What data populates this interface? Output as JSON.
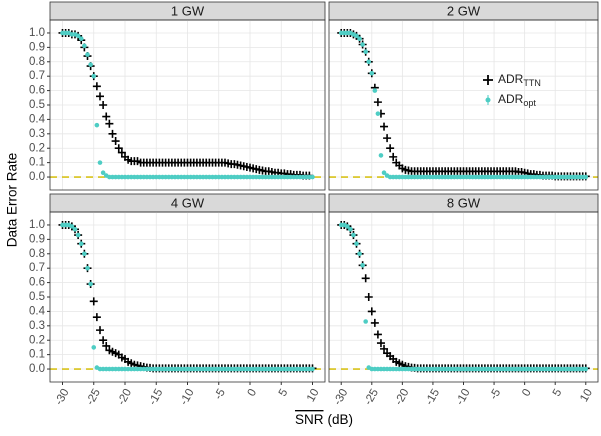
{
  "chart_data": {
    "type": "scatter",
    "ylabel": "Data Error Rate",
    "xlabel": "SNR",
    "xlabel_unit": "(dB)",
    "x": [
      -30,
      -29.5,
      -29,
      -28.5,
      -28,
      -27.5,
      -27,
      -26.5,
      -26,
      -25.5,
      -25,
      -24.5,
      -24,
      -23.5,
      -23,
      -22.5,
      -22,
      -21.5,
      -21,
      -20.5,
      -20,
      -19.5,
      -19,
      -18.5,
      -18,
      -17.5,
      -17,
      -16.5,
      -16,
      -15.5,
      -15,
      -14.5,
      -14,
      -13.5,
      -13,
      -12.5,
      -12,
      -11.5,
      -11,
      -10.5,
      -10,
      -9.5,
      -9,
      -8.5,
      -8,
      -7.5,
      -7,
      -6.5,
      -6,
      -5.5,
      -5,
      -4.5,
      -4,
      -3.5,
      -3,
      -2.5,
      -2,
      -1.5,
      -1,
      -0.5,
      0,
      0.5,
      1,
      1.5,
      2,
      2.5,
      3,
      3.5,
      4,
      4.5,
      5,
      5.5,
      6,
      6.5,
      7,
      7.5,
      8,
      8.5,
      9,
      9.5,
      10
    ],
    "xlim": [
      -32,
      12
    ],
    "xticks": [
      -30,
      -25,
      -20,
      -15,
      -10,
      -5,
      0,
      5,
      10
    ],
    "ylim": [
      -0.09,
      1.09
    ],
    "yticks": [
      {
        "value": 0,
        "label": "0.0"
      },
      0.1,
      0.2,
      0.3,
      0.4,
      0.5,
      0.6,
      0.7,
      0.8,
      0.9,
      {
        "value": 1,
        "label": "1.0"
      }
    ],
    "grid": true,
    "hline": 0,
    "hline_color": "#d8c21a",
    "series": [
      {
        "name": "ADR",
        "subscript": "TTN",
        "color": "#000000",
        "marker": "plus"
      },
      {
        "name": "ADR",
        "subscript": "opt",
        "color": "#4ecdc4",
        "marker": "point"
      }
    ],
    "facets": [
      {
        "title": "1 GW",
        "series": [
          {
            "values": [
              1,
              1,
              1,
              0.99,
              0.99,
              0.98,
              0.95,
              0.9,
              0.84,
              0.77,
              0.7,
              0.63,
              0.56,
              0.5,
              0.42,
              0.37,
              0.3,
              0.25,
              0.2,
              0.17,
              0.14,
              0.12,
              0.11,
              0.11,
              0.11,
              0.1,
              0.1,
              0.1,
              0.1,
              0.1,
              0.1,
              0.1,
              0.1,
              0.1,
              0.1,
              0.1,
              0.1,
              0.1,
              0.1,
              0.1,
              0.1,
              0.1,
              0.1,
              0.1,
              0.1,
              0.1,
              0.1,
              0.1,
              0.1,
              0.1,
              0.1,
              0.1,
              0.1,
              0.095,
              0.09,
              0.09,
              0.085,
              0.08,
              0.075,
              0.07,
              0.065,
              0.06,
              0.055,
              0.05,
              0.045,
              0.04,
              0.04,
              0.035,
              0.03,
              0.03,
              0.025,
              0.025,
              0.02,
              0.02,
              0.015,
              0.015,
              0.015,
              0.01,
              0.01,
              0.01
            ]
          },
          {
            "values": [
              1,
              1,
              1,
              0.99,
              0.99,
              0.98,
              0.96,
              0.91,
              0.85,
              0.78,
              0.7,
              0.36,
              0.1,
              0.03,
              0.01,
              0,
              0,
              0,
              0,
              0,
              0,
              0,
              0,
              0,
              0,
              0,
              0,
              0,
              0,
              0,
              0,
              0,
              0,
              0,
              0,
              0,
              0,
              0,
              0,
              0,
              0,
              0,
              0,
              0,
              0,
              0,
              0,
              0,
              0,
              0,
              0,
              0,
              0,
              0,
              0,
              0,
              0,
              0,
              0,
              0,
              0,
              0,
              0,
              0,
              0,
              0,
              0,
              0,
              0,
              0,
              0,
              0,
              0,
              0,
              0,
              0,
              0,
              0,
              0,
              0,
              0
            ]
          }
        ]
      },
      {
        "title": "2 GW",
        "series": [
          {
            "values": [
              1,
              1,
              1,
              1,
              0.99,
              0.98,
              0.96,
              0.92,
              0.87,
              0.8,
              0.72,
              0.62,
              0.52,
              0.44,
              0.35,
              0.27,
              0.2,
              0.14,
              0.1,
              0.08,
              0.06,
              0.05,
              0.045,
              0.04,
              0.04,
              0.04,
              0.04,
              0.04,
              0.04,
              0.04,
              0.04,
              0.04,
              0.04,
              0.04,
              0.04,
              0.04,
              0.04,
              0.04,
              0.04,
              0.04,
              0.04,
              0.04,
              0.04,
              0.04,
              0.04,
              0.04,
              0.04,
              0.04,
              0.04,
              0.04,
              0.04,
              0.04,
              0.04,
              0.04,
              0.04,
              0.04,
              0.04,
              0.04,
              0.035,
              0.035,
              0.03,
              0.025,
              0.02,
              0.02,
              0.015,
              0.015,
              0.01,
              0.01,
              0.01,
              0.01,
              0.005,
              0.005,
              0.005,
              0.005,
              0.005,
              0.005,
              0.005,
              0.005,
              0.005,
              0.005,
              0.005
            ]
          },
          {
            "values": [
              1,
              1,
              1,
              1,
              0.99,
              0.98,
              0.96,
              0.92,
              0.87,
              0.8,
              0.72,
              0.6,
              0.44,
              0.15,
              0.03,
              0.01,
              0,
              0,
              0,
              0,
              0,
              0,
              0,
              0,
              0,
              0,
              0,
              0,
              0,
              0,
              0,
              0,
              0,
              0,
              0,
              0,
              0,
              0,
              0,
              0,
              0,
              0,
              0,
              0,
              0,
              0,
              0,
              0,
              0,
              0,
              0,
              0,
              0,
              0,
              0,
              0,
              0,
              0,
              0,
              0,
              0,
              0,
              0,
              0,
              0,
              0,
              0,
              0,
              0,
              0,
              0,
              0,
              0,
              0,
              0,
              0,
              0,
              0,
              0,
              0,
              0
            ]
          }
        ]
      },
      {
        "title": "4 GW",
        "series": [
          {
            "values": [
              1,
              1,
              1,
              0.99,
              0.97,
              0.93,
              0.87,
              0.8,
              0.7,
              0.59,
              0.47,
              0.36,
              0.27,
              0.2,
              0.16,
              0.13,
              0.12,
              0.11,
              0.1,
              0.08,
              0.07,
              0.05,
              0.04,
              0.03,
              0.025,
              0.02,
              0.015,
              0.01,
              0.008,
              0.005,
              0.005,
              0.005,
              0.005,
              0.005,
              0.005,
              0.005,
              0.005,
              0.005,
              0.005,
              0.005,
              0.005,
              0.005,
              0.005,
              0.005,
              0.005,
              0.005,
              0.005,
              0.005,
              0.005,
              0.005,
              0.005,
              0.005,
              0.005,
              0.005,
              0.005,
              0.005,
              0.005,
              0.005,
              0.005,
              0.005,
              0.005,
              0.005,
              0.005,
              0.005,
              0.005,
              0.005,
              0.005,
              0.005,
              0.005,
              0.005,
              0.005,
              0.005,
              0.005,
              0.005,
              0.005,
              0.005,
              0.005,
              0.005,
              0.005,
              0.005,
              0.005
            ]
          },
          {
            "values": [
              1,
              1,
              1,
              0.99,
              0.97,
              0.93,
              0.87,
              0.8,
              0.7,
              0.59,
              0.15,
              0.01,
              0,
              0,
              0,
              0,
              0,
              0,
              0,
              0,
              0,
              0,
              0,
              0,
              0,
              0,
              0,
              0,
              0,
              0,
              0,
              0,
              0,
              0,
              0,
              0,
              0,
              0,
              0,
              0,
              0,
              0,
              0,
              0,
              0,
              0,
              0,
              0,
              0,
              0,
              0,
              0,
              0,
              0,
              0,
              0,
              0,
              0,
              0,
              0,
              0,
              0,
              0,
              0,
              0,
              0,
              0,
              0,
              0,
              0,
              0,
              0,
              0,
              0,
              0,
              0,
              0,
              0,
              0,
              0,
              0
            ]
          }
        ]
      },
      {
        "title": "8 GW",
        "series": [
          {
            "values": [
              1,
              1,
              0.99,
              0.97,
              0.93,
              0.87,
              0.8,
              0.72,
              0.63,
              0.5,
              0.4,
              0.32,
              0.24,
              0.18,
              0.14,
              0.11,
              0.09,
              0.07,
              0.05,
              0.04,
              0.03,
              0.02,
              0.015,
              0.01,
              0.008,
              0.005,
              0.005,
              0.005,
              0.005,
              0.005,
              0.005,
              0.005,
              0.005,
              0.005,
              0.005,
              0.005,
              0.005,
              0.005,
              0.005,
              0.005,
              0.005,
              0.005,
              0.005,
              0.005,
              0.005,
              0.005,
              0.005,
              0.005,
              0.005,
              0.005,
              0.005,
              0.005,
              0.005,
              0.005,
              0.005,
              0.005,
              0.005,
              0.005,
              0.005,
              0.005,
              0.005,
              0.005,
              0.005,
              0.005,
              0.005,
              0.005,
              0.005,
              0.005,
              0.005,
              0.005,
              0.005,
              0.005,
              0.005,
              0.005,
              0.005,
              0.005,
              0.005,
              0.005,
              0.005,
              0.005,
              0.005
            ]
          },
          {
            "values": [
              1,
              1,
              0.99,
              0.97,
              0.93,
              0.87,
              0.8,
              0.72,
              0.33,
              0.01,
              0,
              0,
              0,
              0,
              0,
              0,
              0,
              0,
              0,
              0,
              0,
              0,
              0,
              0,
              0,
              0,
              0,
              0,
              0,
              0,
              0,
              0,
              0,
              0,
              0,
              0,
              0,
              0,
              0,
              0,
              0,
              0,
              0,
              0,
              0,
              0,
              0,
              0,
              0,
              0,
              0,
              0,
              0,
              0,
              0,
              0,
              0,
              0,
              0,
              0,
              0,
              0,
              0,
              0,
              0,
              0,
              0,
              0,
              0,
              0,
              0,
              0,
              0,
              0,
              0,
              0,
              0,
              0,
              0,
              0,
              0
            ]
          }
        ]
      }
    ]
  }
}
